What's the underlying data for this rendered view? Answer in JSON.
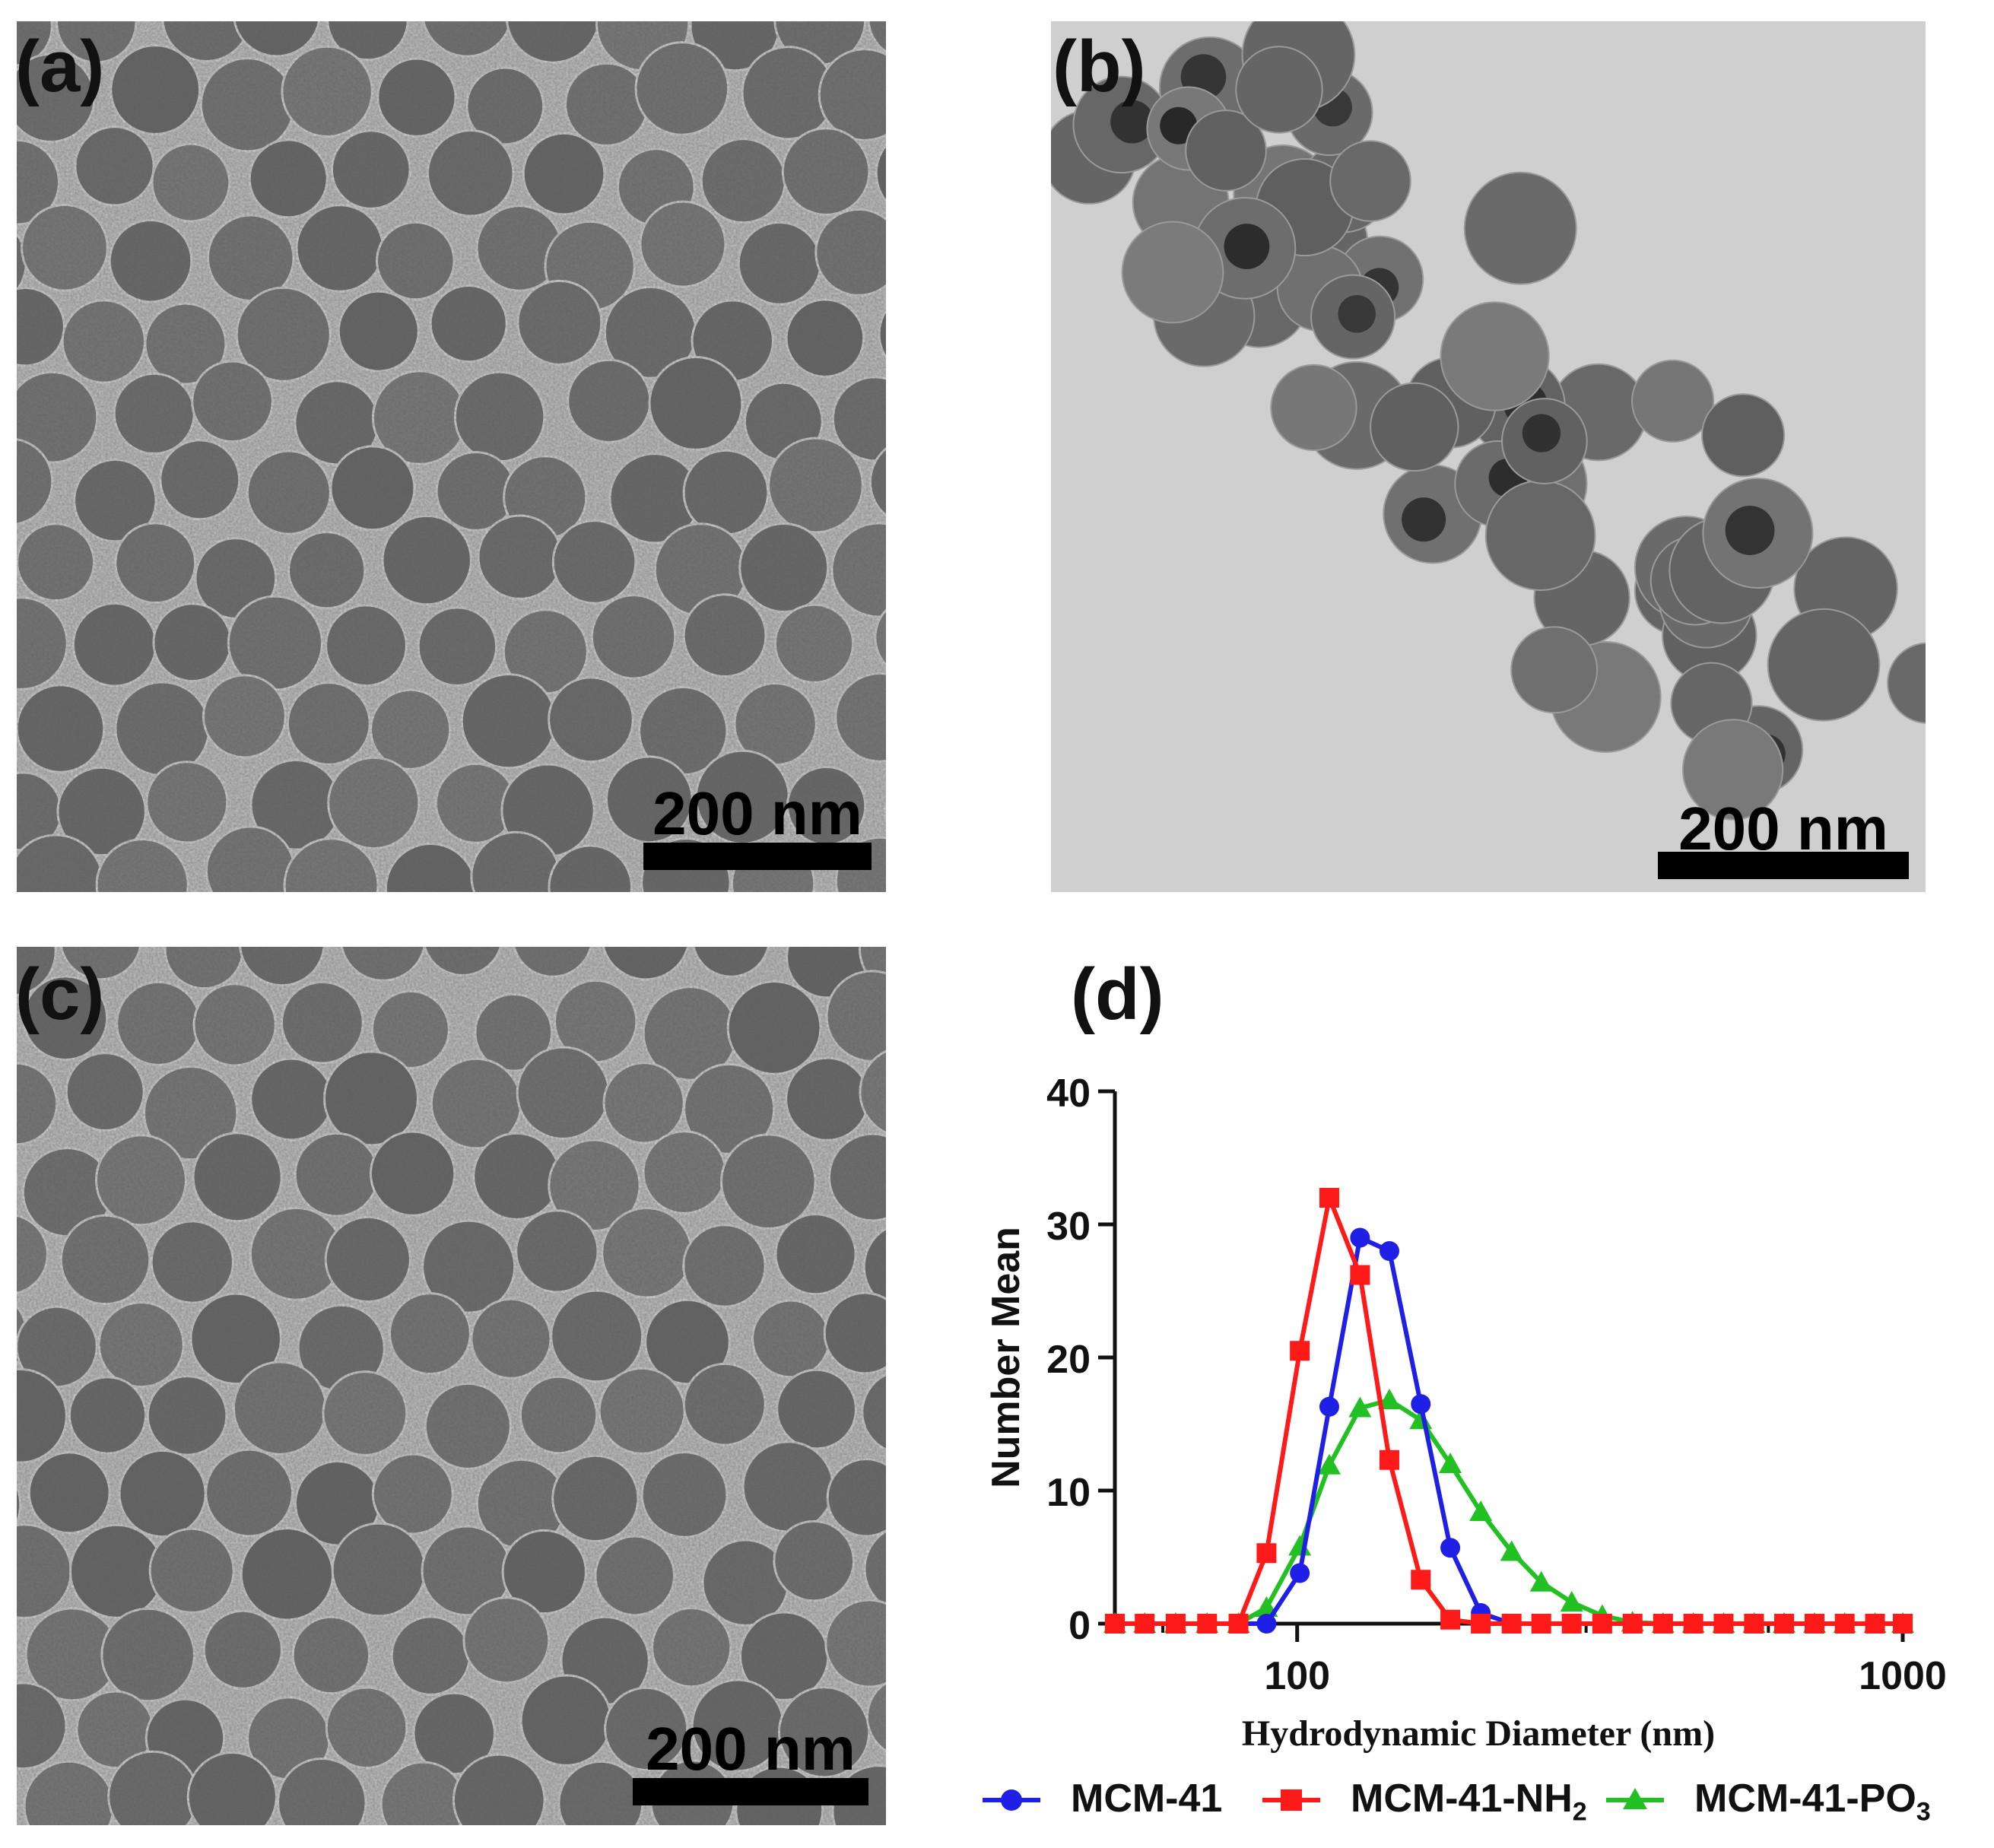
{
  "panels": [
    {
      "label": "(a)",
      "scale": "200 nm"
    },
    {
      "label": "(b)",
      "scale": "200 nm"
    },
    {
      "label": "(c)",
      "scale": "200 nm"
    },
    {
      "label": "(d)"
    }
  ],
  "chart_data": {
    "type": "line",
    "xlabel": "Hydrodynamic Diameter (nm)",
    "ylabel": "Number Mean",
    "x_scale": "log",
    "xlim": [
      50,
      1000
    ],
    "ylim": [
      0,
      40
    ],
    "xticks": [
      100,
      1000
    ],
    "yticks": [
      0,
      10,
      20,
      30,
      40
    ],
    "grid": false,
    "legend_position": "bottom",
    "x": [
      50,
      56,
      63,
      71,
      80,
      89,
      101,
      113,
      127,
      142,
      160,
      179,
      201,
      226,
      253,
      284,
      319,
      358,
      402,
      451,
      506,
      568,
      637,
      715,
      802,
      900,
      1000
    ],
    "series": [
      {
        "name": "MCM-41",
        "color": "#1f1fe6",
        "marker": "circle",
        "values": [
          0,
          0,
          0,
          0,
          0,
          0,
          3.8,
          16.3,
          29,
          28,
          16.5,
          5.7,
          0.8,
          0,
          0,
          0,
          0,
          0,
          0,
          0,
          0,
          0,
          0,
          0,
          0,
          0,
          0
        ]
      },
      {
        "name_main": "MCM-41-NH",
        "name_sub": "2",
        "color": "#ff1a1a",
        "marker": "square",
        "values": [
          0,
          0,
          0,
          0,
          0,
          5.3,
          20.5,
          32,
          26.2,
          12.3,
          3.3,
          0.3,
          0,
          0,
          0,
          0,
          0,
          0,
          0,
          0,
          0,
          0,
          0,
          0,
          0,
          0,
          0
        ]
      },
      {
        "name_main": "MCM-41-PO",
        "name_sub": "3",
        "color": "#22c022",
        "marker": "triangle",
        "values": [
          0,
          0,
          0,
          0,
          0,
          1.2,
          5.8,
          11.9,
          16.2,
          16.8,
          15.3,
          12.0,
          8.4,
          5.4,
          3.1,
          1.6,
          0.6,
          0.1,
          0,
          0,
          0,
          0,
          0,
          0,
          0,
          0,
          0
        ]
      }
    ]
  }
}
